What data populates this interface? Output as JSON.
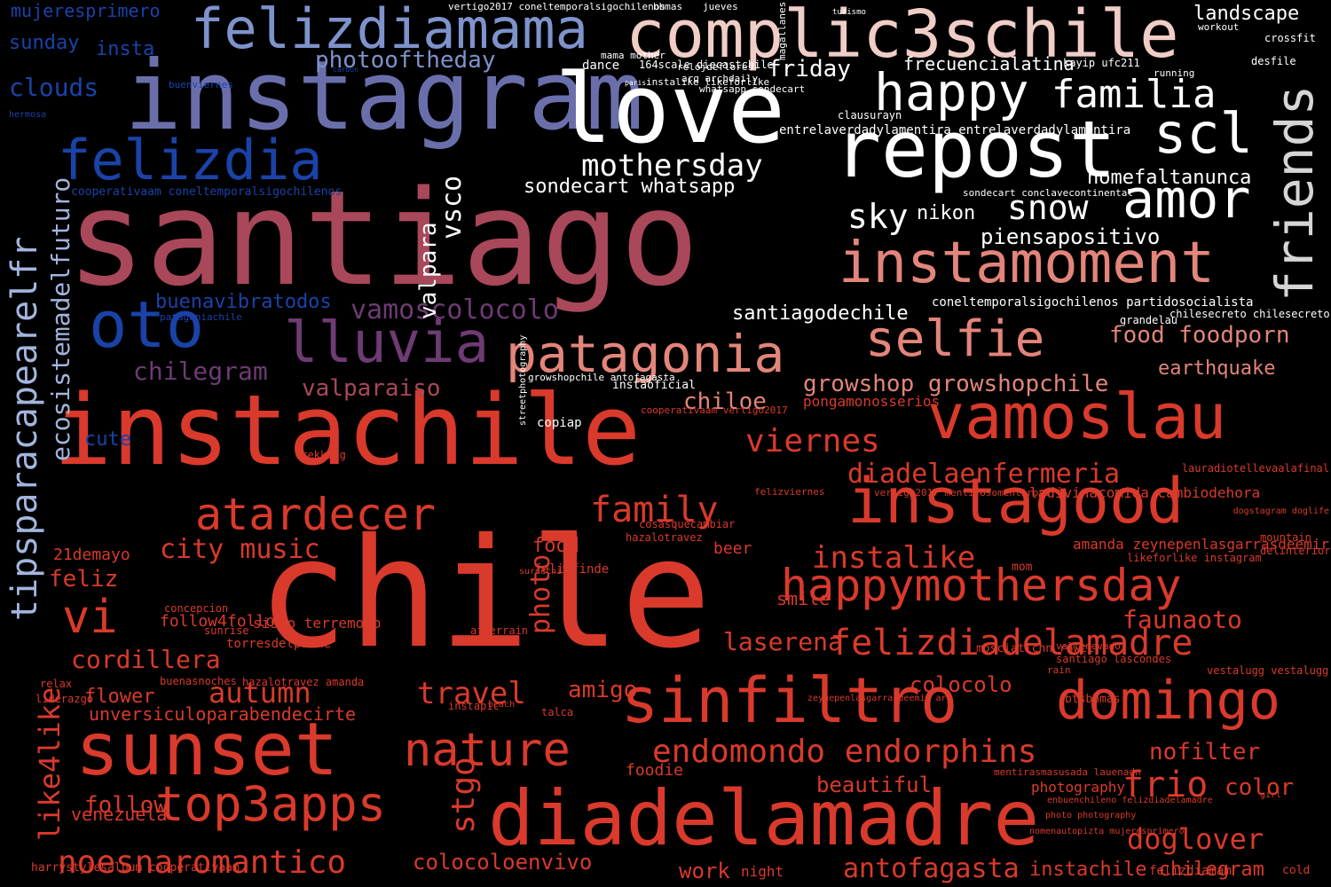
{
  "colors": {
    "background": "#000000",
    "red": "#d93a2b",
    "salmon": "#e3857a",
    "pale_pink": "#f1cdc8",
    "white": "#ffffff",
    "maroon": "#a8485a",
    "purple": "#6e3b74",
    "slate": "#6a6fab",
    "periwinkle": "#7e93cc",
    "blue": "#1a43a8",
    "light_blue": "#a3b5de",
    "gray": "#d5d5d5"
  },
  "words": [
    {
      "text": "santiago",
      "color": "maroon"
    },
    {
      "text": "chile",
      "color": "red"
    },
    {
      "text": "instachile",
      "color": "red"
    },
    {
      "text": "instagram",
      "color": "slate"
    },
    {
      "text": "love",
      "color": "white"
    },
    {
      "text": "complic3schile",
      "color": "pale_pink"
    },
    {
      "text": "repost",
      "color": "white"
    },
    {
      "text": "felizdiamama",
      "color": "periwinkle"
    },
    {
      "text": "felizdia",
      "color": "blue"
    },
    {
      "text": "oto",
      "color": "blue"
    },
    {
      "text": "lluvia",
      "color": "purple"
    },
    {
      "text": "happy",
      "color": "white"
    },
    {
      "text": "familia",
      "color": "white"
    },
    {
      "text": "scl",
      "color": "white"
    },
    {
      "text": "amor",
      "color": "white"
    },
    {
      "text": "friends",
      "color": "gray"
    },
    {
      "text": "instamoment",
      "color": "salmon"
    },
    {
      "text": "selfie",
      "color": "salmon"
    },
    {
      "text": "patagonia",
      "color": "salmon"
    },
    {
      "text": "vamoslau",
      "color": "red"
    },
    {
      "text": "instagood",
      "color": "red"
    },
    {
      "text": "happymothersday",
      "color": "red"
    },
    {
      "text": "sinfiltro",
      "color": "red"
    },
    {
      "text": "domingo",
      "color": "red"
    },
    {
      "text": "diadelamadre",
      "color": "red"
    },
    {
      "text": "sunset",
      "color": "red"
    },
    {
      "text": "top3apps",
      "color": "red"
    },
    {
      "text": "nature",
      "color": "red"
    },
    {
      "text": "atardecer",
      "color": "red"
    },
    {
      "text": "vi",
      "color": "red"
    },
    {
      "text": "family",
      "color": "red"
    },
    {
      "text": "felizdiadelamadre",
      "color": "red"
    },
    {
      "text": "endomondo endorphins",
      "color": "red"
    },
    {
      "text": "noesnaromantico",
      "color": "red"
    },
    {
      "text": "tipsparacapearelfr",
      "color": "light_blue"
    },
    {
      "text": "ecosistemadelfuturo",
      "color": "light_blue"
    },
    {
      "text": "mothersday",
      "color": "white"
    },
    {
      "text": "photooftheday",
      "color": "periwinkle"
    },
    {
      "text": "vamoscolocolo",
      "color": "purple"
    },
    {
      "text": "chilegram",
      "color": "purple"
    },
    {
      "text": "clouds",
      "color": "blue"
    },
    {
      "text": "sunday",
      "color": "blue"
    },
    {
      "text": "insta",
      "color": "blue"
    },
    {
      "text": "mujeresprimero",
      "color": "blue"
    },
    {
      "text": "buenavibratodos",
      "color": "blue"
    },
    {
      "text": "valparaiso",
      "color": "maroon"
    },
    {
      "text": "friday",
      "color": "white"
    },
    {
      "text": "frecuencialatina",
      "color": "white"
    },
    {
      "text": "landscape",
      "color": "white"
    },
    {
      "text": "sky",
      "color": "white"
    },
    {
      "text": "nikon",
      "color": "white"
    },
    {
      "text": "snow",
      "color": "white"
    },
    {
      "text": "nomefaltanunca",
      "color": "white"
    },
    {
      "text": "piensapositivo",
      "color": "white"
    },
    {
      "text": "sondecart whatsapp",
      "color": "white"
    },
    {
      "text": "santiagodechile",
      "color": "white"
    },
    {
      "text": "valpara",
      "color": "white"
    },
    {
      "text": "vsco",
      "color": "white"
    },
    {
      "text": "food foodporn",
      "color": "salmon"
    },
    {
      "text": "growshop growshopchile",
      "color": "salmon"
    },
    {
      "text": "earthquake",
      "color": "salmon"
    },
    {
      "text": "chiloe",
      "color": "salmon"
    },
    {
      "text": "viernes",
      "color": "red"
    },
    {
      "text": "diadelaenfermeria",
      "color": "red"
    },
    {
      "text": "city music",
      "color": "red"
    },
    {
      "text": "instalike",
      "color": "red"
    },
    {
      "text": "cordillera",
      "color": "red"
    },
    {
      "text": "laserena",
      "color": "red"
    },
    {
      "text": "autumn",
      "color": "red"
    },
    {
      "text": "travel",
      "color": "red"
    },
    {
      "text": "colocolo",
      "color": "red"
    },
    {
      "text": "flower",
      "color": "red"
    },
    {
      "text": "unversiculoparabendecirte",
      "color": "red"
    },
    {
      "text": "amigo",
      "color": "red"
    },
    {
      "text": "photo",
      "color": "red"
    },
    {
      "text": "food",
      "color": "red"
    },
    {
      "text": "smile",
      "color": "red"
    },
    {
      "text": "faunaoto",
      "color": "red"
    },
    {
      "text": "nofilter",
      "color": "red"
    },
    {
      "text": "frio",
      "color": "red"
    },
    {
      "text": "color",
      "color": "red"
    },
    {
      "text": "beautiful",
      "color": "red"
    },
    {
      "text": "doglover",
      "color": "red"
    },
    {
      "text": "follow",
      "color": "red"
    },
    {
      "text": "like4like",
      "color": "red"
    },
    {
      "text": "stgo",
      "color": "red"
    },
    {
      "text": "work",
      "color": "red"
    },
    {
      "text": "antofagasta",
      "color": "red"
    },
    {
      "text": "instachile chilegram",
      "color": "red"
    },
    {
      "text": "colocoloenvivo",
      "color": "red"
    },
    {
      "text": "cute",
      "color": "blue"
    },
    {
      "text": "follow4follow",
      "color": "red"
    },
    {
      "text": "sismo terremoto",
      "color": "red"
    },
    {
      "text": "pongamonosserios",
      "color": "red"
    },
    {
      "text": "copiap",
      "color": "white"
    },
    {
      "text": "21demayo",
      "color": "red"
    },
    {
      "text": "felizdiamam",
      "color": "red"
    },
    {
      "text": "venezuela",
      "color": "red"
    },
    {
      "text": "night",
      "color": "red"
    },
    {
      "text": "cold",
      "color": "red"
    },
    {
      "text": "photography",
      "color": "red"
    },
    {
      "text": "feliz",
      "color": "red"
    },
    {
      "text": "relax",
      "color": "red"
    },
    {
      "text": "liderazgo",
      "color": "red"
    },
    {
      "text": "buenasnoches",
      "color": "red"
    },
    {
      "text": "hazalotravez amanda",
      "color": "red"
    },
    {
      "text": "mom",
      "color": "red"
    },
    {
      "text": "beer",
      "color": "red"
    },
    {
      "text": "growshopchile antofagasta",
      "color": "white"
    },
    {
      "text": "vertigo2017 coneltemporalsigochilenos",
      "color": "white"
    },
    {
      "text": "bbmas",
      "color": "white"
    },
    {
      "text": "jueves",
      "color": "white"
    },
    {
      "text": "magallanes",
      "color": "white"
    },
    {
      "text": "dance",
      "color": "white"
    },
    {
      "text": "164scale diecastchile",
      "color": "white"
    },
    {
      "text": "crossfit",
      "color": "white"
    },
    {
      "text": "desfile",
      "color": "white"
    },
    {
      "text": "running",
      "color": "white"
    },
    {
      "text": "workout",
      "color": "white"
    },
    {
      "text": "whatsapp sondecart",
      "color": "white"
    },
    {
      "text": "arq archdaily",
      "color": "white"
    },
    {
      "text": "relojdeflores",
      "color": "white"
    },
    {
      "text": "instalike likeforlike",
      "color": "white"
    },
    {
      "text": "mama mother",
      "color": "white"
    },
    {
      "text": "paris",
      "color": "white"
    },
    {
      "text": "turismo",
      "color": "white"
    },
    {
      "text": "kayip ufc211",
      "color": "white"
    },
    {
      "text": "coneltemporalsigochilenos partidosocialista",
      "color": "white"
    },
    {
      "text": "entrelaverdadylamentira entrelaverdadylamentira",
      "color": "white"
    },
    {
      "text": "clausurayn",
      "color": "white"
    },
    {
      "text": "sondecart conclavecontinental",
      "color": "white"
    },
    {
      "text": "chilesecreto chilesecreto",
      "color": "white"
    },
    {
      "text": "grandelau",
      "color": "white"
    },
    {
      "text": "cooperativaam vertigo2017",
      "color": "red"
    },
    {
      "text": "instaoficial",
      "color": "white"
    },
    {
      "text": "streetphotography",
      "color": "white"
    },
    {
      "text": "cooperativaam coneltemporalsigochilenos",
      "color": "blue"
    },
    {
      "text": "buenviernes",
      "color": "blue"
    },
    {
      "text": "patagoniachile",
      "color": "blue"
    },
    {
      "text": "hermosa",
      "color": "blue"
    },
    {
      "text": "carbon",
      "color": "blue"
    },
    {
      "text": "felizfinde",
      "color": "red"
    },
    {
      "text": "concepcion",
      "color": "red"
    },
    {
      "text": "sunrise",
      "color": "red"
    },
    {
      "text": "torresdelpaine",
      "color": "red"
    },
    {
      "text": "harrystylesalbum cooperativaam",
      "color": "red"
    },
    {
      "text": "trekking",
      "color": "red"
    },
    {
      "text": "afterrain",
      "color": "red"
    },
    {
      "text": "foodie",
      "color": "red"
    },
    {
      "text": "btsbbmas",
      "color": "red"
    },
    {
      "text": "ladivinacomida cambiodehora",
      "color": "red"
    },
    {
      "text": "amanda zeynepenlasgarrasdeemir",
      "color": "red"
    },
    {
      "text": "likeforlike instagram",
      "color": "red"
    },
    {
      "text": "vestalugg vestalugg",
      "color": "red"
    },
    {
      "text": "lauradiotellevaalafinal",
      "color": "red"
    },
    {
      "text": "dogstagram doglife",
      "color": "red"
    },
    {
      "text": "mountain",
      "color": "red"
    },
    {
      "text": "delinterior",
      "color": "red"
    },
    {
      "text": "hazalotravez",
      "color": "red"
    },
    {
      "text": "cosasquecambiar",
      "color": "red"
    },
    {
      "text": "instapic",
      "color": "red"
    },
    {
      "text": "beach",
      "color": "red"
    },
    {
      "text": "talca",
      "color": "red"
    },
    {
      "text": "santiago lascondes",
      "color": "red"
    },
    {
      "text": "mosciaticnn rawcl",
      "color": "red"
    },
    {
      "text": "rain",
      "color": "red"
    },
    {
      "text": "vallenevado",
      "color": "red"
    },
    {
      "text": "zeynepenlasgarrasdeemir arz",
      "color": "red"
    },
    {
      "text": "mentirasmasusada lauenadn",
      "color": "red"
    },
    {
      "text": "photo photography",
      "color": "red"
    },
    {
      "text": "enbuenchileno felizdiadelamadre",
      "color": "red"
    },
    {
      "text": "nomenautopizta mujeresprimero",
      "color": "red"
    },
    {
      "text": "vertigo2017 mentirosomentirosa",
      "color": "red"
    },
    {
      "text": "felizviernes",
      "color": "red"
    },
    {
      "text": "surdechile",
      "color": "red"
    },
    {
      "text": "girl",
      "color": "red"
    },
    {
      "text": "felizdiamama",
      "color": "red"
    }
  ]
}
